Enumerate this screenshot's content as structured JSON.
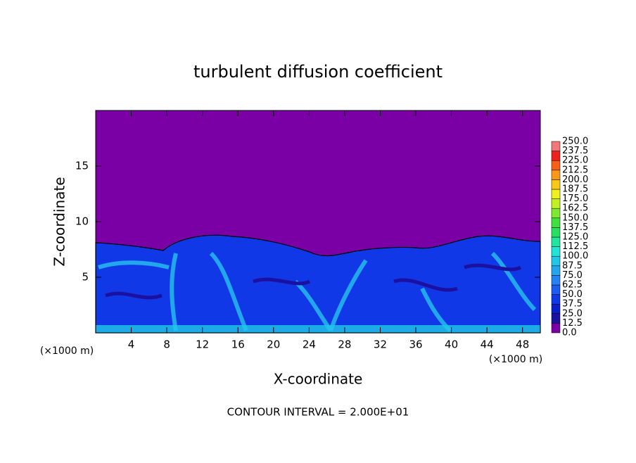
{
  "chart_data": {
    "type": "contour",
    "title": "turbulent diffusion coefficient",
    "x_label": "X-coordinate",
    "y_label": "Z-coordinate",
    "x_unit": "(×1000 m)",
    "x_unit_right": "(×1000 m)",
    "footnote": "CONTOUR INTERVAL = 2.000E+01",
    "xlim": [
      0,
      50
    ],
    "xticks": [
      4,
      8,
      12,
      16,
      20,
      24,
      28,
      32,
      36,
      40,
      44,
      48
    ],
    "ylim": [
      0,
      20
    ],
    "yticks": [
      5,
      10,
      15
    ],
    "colorbar": {
      "levels": [
        {
          "value": 0,
          "label": "0.0"
        },
        {
          "value": 12.5,
          "label": "12.5"
        },
        {
          "value": 25,
          "label": "25.0"
        },
        {
          "value": 37.5,
          "label": "37.5"
        },
        {
          "value": 50,
          "label": "50.0"
        },
        {
          "value": 62.5,
          "label": "62.5"
        },
        {
          "value": 75,
          "label": "75.0"
        },
        {
          "value": 87.5,
          "label": "87.5"
        },
        {
          "value": 100,
          "label": "100.0"
        },
        {
          "value": 112.5,
          "label": "112.5"
        },
        {
          "value": 125,
          "label": "125.0"
        },
        {
          "value": 137.5,
          "label": "137.5"
        },
        {
          "value": 150,
          "label": "150.0"
        },
        {
          "value": 162.5,
          "label": "162.5"
        },
        {
          "value": 175,
          "label": "175.0"
        },
        {
          "value": 187.5,
          "label": "187.5"
        },
        {
          "value": 200,
          "label": "200.0"
        },
        {
          "value": 212.5,
          "label": "212.5"
        },
        {
          "value": 225,
          "label": "225.0"
        },
        {
          "value": 237.5,
          "label": "237.5"
        },
        {
          "value": 250,
          "label": "250.0"
        }
      ],
      "colors": [
        "#7a00a6",
        "#1c10a0",
        "#0a1ec8",
        "#1038e6",
        "#1c5cf0",
        "#2482f2",
        "#22a6ee",
        "#20c8e8",
        "#20e4d8",
        "#20e6a0",
        "#28e060",
        "#40e040",
        "#80e830",
        "#c0f020",
        "#f0f020",
        "#f8c818",
        "#f89818",
        "#f86018",
        "#f02020",
        "#f07878"
      ]
    }
  }
}
